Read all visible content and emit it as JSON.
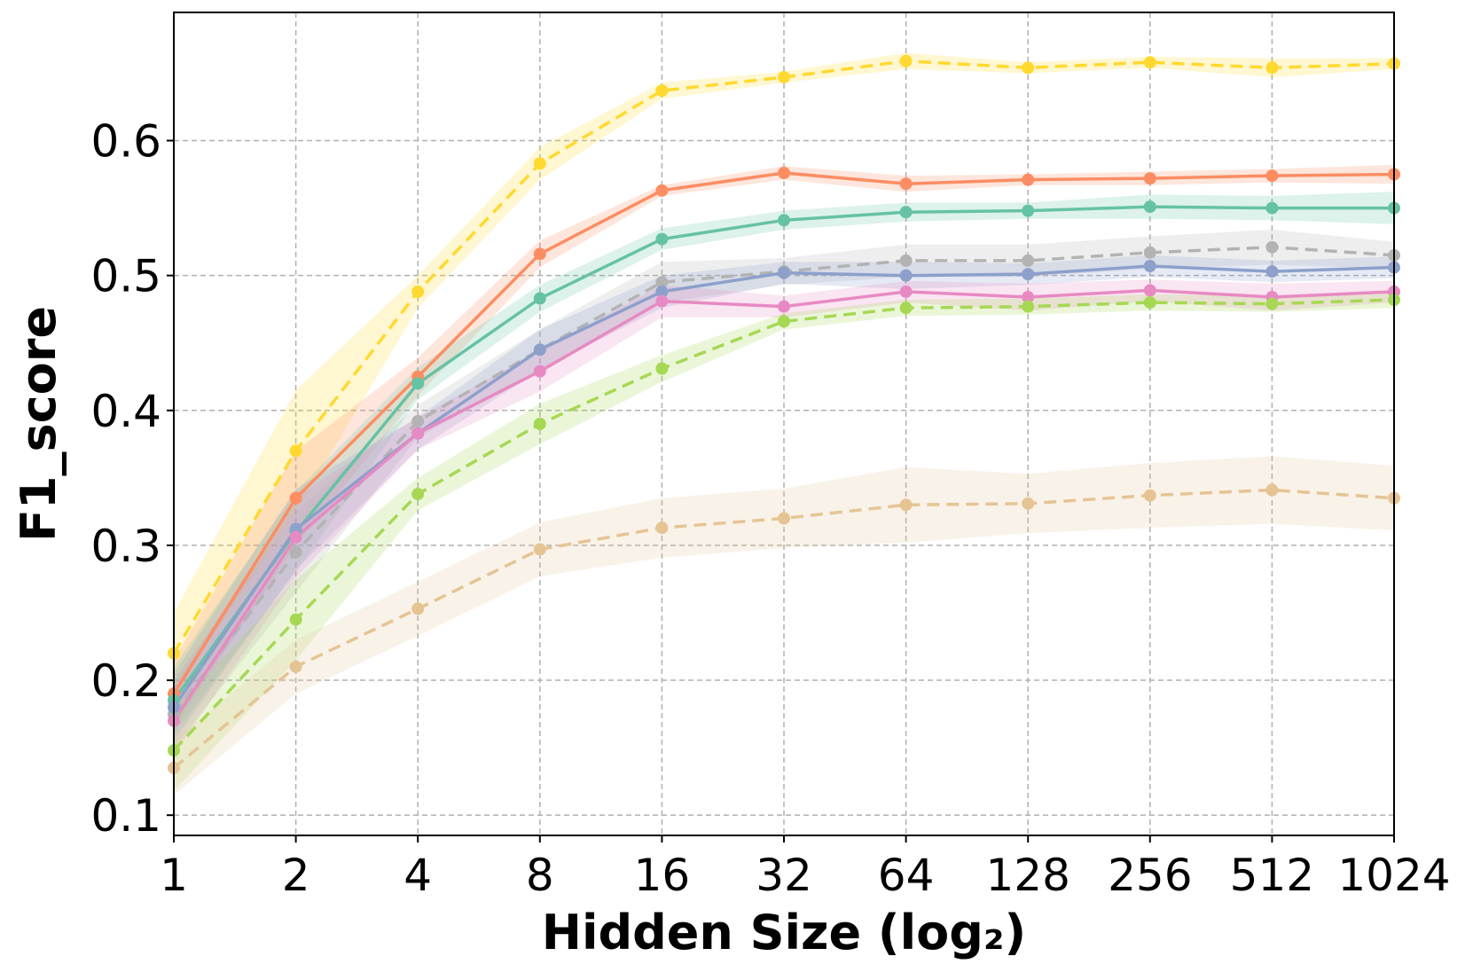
{
  "chart_data": {
    "type": "line",
    "xlabel": "Hidden Size (log₂)",
    "ylabel": "F1_score",
    "x": [
      1,
      2,
      4,
      8,
      16,
      32,
      64,
      128,
      256,
      512,
      1024
    ],
    "x_tick_labels": [
      "1",
      "2",
      "4",
      "8",
      "16",
      "32",
      "64",
      "128",
      "256",
      "512",
      "1024"
    ],
    "x_scale": "log2",
    "y_ticks": [
      0.1,
      0.2,
      0.3,
      0.4,
      0.5,
      0.6
    ],
    "y_tick_labels": [
      "0.1",
      "0.2",
      "0.3",
      "0.4",
      "0.5",
      "0.6"
    ],
    "ylim": [
      0.085,
      0.695
    ],
    "grid": true,
    "series": [
      {
        "color": "#ffd92f",
        "dashed": true,
        "values": [
          0.22,
          0.37,
          0.488,
          0.583,
          0.637,
          0.647,
          0.659,
          0.654,
          0.658,
          0.654,
          0.657
        ],
        "band": [
          0.03,
          0.045,
          0.012,
          0.012,
          0.006,
          0.004,
          0.006,
          0.004,
          0.004,
          0.007,
          0.004
        ]
      },
      {
        "color": "#fc8d62",
        "dashed": false,
        "values": [
          0.19,
          0.335,
          0.425,
          0.516,
          0.563,
          0.576,
          0.568,
          0.571,
          0.572,
          0.574,
          0.575
        ],
        "band": [
          0.025,
          0.035,
          0.014,
          0.01,
          0.004,
          0.005,
          0.006,
          0.004,
          0.005,
          0.005,
          0.007
        ]
      },
      {
        "color": "#66c2a5",
        "dashed": false,
        "values": [
          0.185,
          0.31,
          0.42,
          0.483,
          0.527,
          0.541,
          0.547,
          0.548,
          0.551,
          0.55,
          0.55
        ],
        "band": [
          0.025,
          0.03,
          0.012,
          0.01,
          0.008,
          0.007,
          0.007,
          0.006,
          0.009,
          0.009,
          0.012
        ]
      },
      {
        "color": "#b3b3b3",
        "dashed": true,
        "values": [
          0.175,
          0.295,
          0.392,
          0.445,
          0.495,
          0.503,
          0.511,
          0.511,
          0.517,
          0.521,
          0.515
        ],
        "band": [
          0.025,
          0.03,
          0.012,
          0.015,
          0.015,
          0.01,
          0.012,
          0.012,
          0.012,
          0.013,
          0.01
        ]
      },
      {
        "color": "#8da0cb",
        "dashed": false,
        "values": [
          0.18,
          0.312,
          0.383,
          0.445,
          0.488,
          0.502,
          0.5,
          0.501,
          0.507,
          0.503,
          0.506
        ],
        "band": [
          0.025,
          0.03,
          0.012,
          0.015,
          0.012,
          0.008,
          0.01,
          0.008,
          0.008,
          0.008,
          0.008
        ]
      },
      {
        "color": "#e78ac3",
        "dashed": false,
        "values": [
          0.17,
          0.306,
          0.383,
          0.429,
          0.481,
          0.477,
          0.488,
          0.484,
          0.489,
          0.484,
          0.488
        ],
        "band": [
          0.025,
          0.03,
          0.012,
          0.015,
          0.012,
          0.008,
          0.008,
          0.01,
          0.008,
          0.01,
          0.008
        ]
      },
      {
        "color": "#a6d854",
        "dashed": true,
        "values": [
          0.148,
          0.245,
          0.338,
          0.39,
          0.431,
          0.466,
          0.476,
          0.477,
          0.48,
          0.479,
          0.482
        ],
        "band": [
          0.03,
          0.03,
          0.012,
          0.015,
          0.01,
          0.006,
          0.006,
          0.006,
          0.006,
          0.006,
          0.006
        ]
      },
      {
        "color": "#e5c494",
        "dashed": true,
        "values": [
          0.135,
          0.21,
          0.253,
          0.297,
          0.313,
          0.32,
          0.33,
          0.331,
          0.337,
          0.341,
          0.335
        ],
        "band": [
          0.02,
          0.02,
          0.02,
          0.02,
          0.022,
          0.022,
          0.028,
          0.022,
          0.024,
          0.025,
          0.024
        ]
      }
    ]
  }
}
